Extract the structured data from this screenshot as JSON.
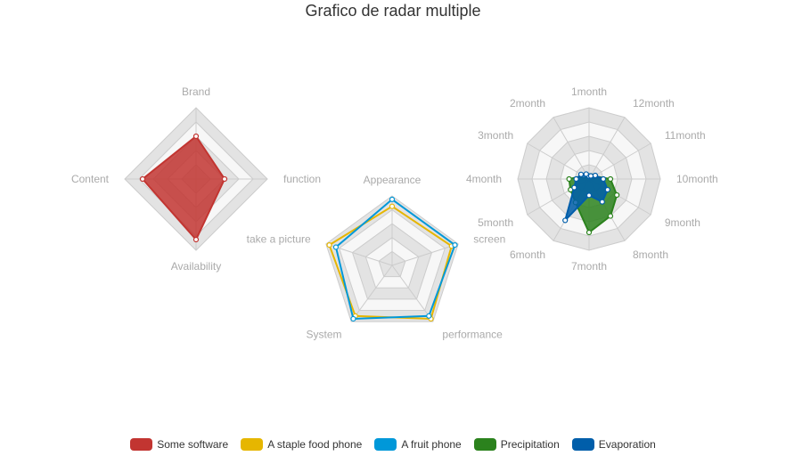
{
  "title": "Grafico de radar multiple",
  "chart_data": [
    {
      "type": "radar",
      "indicators": [
        "Brand",
        "function",
        "Availability",
        "Content"
      ],
      "max": 100,
      "series": [
        {
          "name": "Some software",
          "values": [
            60,
            40,
            85,
            75
          ],
          "color": "#c23531"
        }
      ]
    },
    {
      "type": "radar",
      "indicators": [
        "Appearance",
        "screen",
        "performance",
        "System",
        "take a picture"
      ],
      "max": 100,
      "series": [
        {
          "name": "A staple food phone",
          "values": [
            85,
            90,
            95,
            90,
            95
          ],
          "color": "#e6b600"
        },
        {
          "name": "A fruit phone",
          "values": [
            95,
            95,
            90,
            95,
            85
          ],
          "color": "#0098d9"
        }
      ]
    },
    {
      "type": "radar",
      "indicators": [
        "1month",
        "2month",
        "3month",
        "4month",
        "5month",
        "6month",
        "7month",
        "8month",
        "9month",
        "10month",
        "11month",
        "12month"
      ],
      "max": 100,
      "series": [
        {
          "name": "Precipitation",
          "values": [
            4,
            6,
            9,
            28,
            30,
            38,
            75,
            60,
            45,
            30,
            8,
            5
          ],
          "color": "#2b821d"
        },
        {
          "name": "Evaporation",
          "values": [
            4,
            8,
            13,
            18,
            24,
            67,
            23,
            37,
            30,
            20,
            10,
            5
          ],
          "color": "#005eaa"
        }
      ]
    }
  ],
  "legend": [
    {
      "label": "Some software",
      "color": "#c23531"
    },
    {
      "label": "A staple food phone",
      "color": "#e6b600"
    },
    {
      "label": "A fruit phone",
      "color": "#0098d9"
    },
    {
      "label": "Precipitation",
      "color": "#2b821d"
    },
    {
      "label": "Evaporation",
      "color": "#005eaa"
    }
  ]
}
